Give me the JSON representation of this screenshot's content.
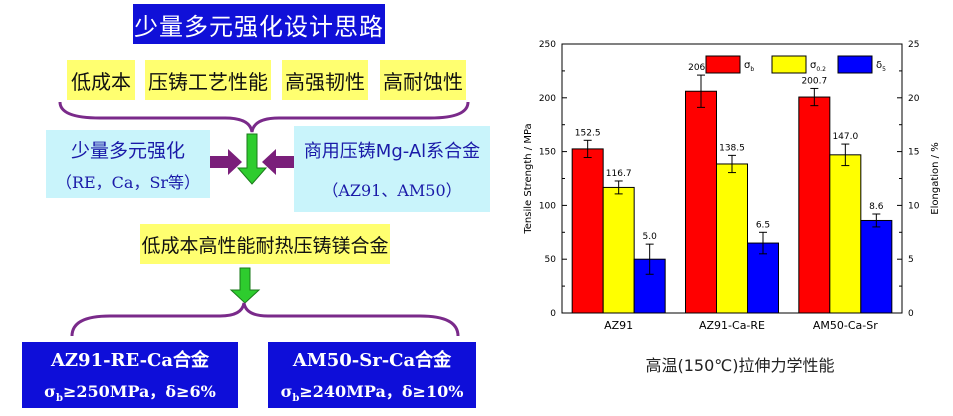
{
  "left": {
    "title": "少量多元强化设计思路",
    "tags": [
      "低成本",
      "压铸工艺性能",
      "高强韧性",
      "高耐蚀性"
    ],
    "box_left": {
      "line1": "少量多元强化",
      "line2": "（RE，Ca，Sr等）"
    },
    "box_right": {
      "line1": "商用压铸Mg-Al系合金",
      "line2": "（AZ91、AM50）"
    },
    "middle": "低成本高性能耐热压铸镁合金",
    "result_left": {
      "line1": "AZ91-RE-Ca合金",
      "sigma": "σ",
      "sub": "b",
      "cond": "≥250MPa，δ≥6%"
    },
    "result_right": {
      "line1": "AM50-Sr-Ca合金",
      "sigma": "σ",
      "sub": "b",
      "cond": "≥240MPa，δ≥10%"
    },
    "colors": {
      "title_bg": "#1010d8",
      "tag_bg": "#ffff70",
      "cyan_bg": "#c9f4fb",
      "result_bg": "#0e0ed9",
      "arrow_green": "#2ecc2e",
      "arrow_purple": "#7a1f7a",
      "brace": "#7a2a8a"
    }
  },
  "chart_data": {
    "type": "bar",
    "categories": [
      "AZ91",
      "AZ91-Ca-RE",
      "AM50-Ca-Sr"
    ],
    "ylabel_left": "Tensile Strength / MPa",
    "ylabel_right": "Elongation / %",
    "ylim_left": [
      0,
      250
    ],
    "ylim_right": [
      0,
      25
    ],
    "yticks_left": [
      0,
      50,
      100,
      150,
      200,
      250
    ],
    "yticks_right": [
      0,
      5,
      10,
      15,
      20,
      25
    ],
    "caption": "高温(150℃)拉伸力学性能",
    "legend_position": "top-right",
    "series": [
      {
        "name": "σ",
        "sub": "b",
        "axis": "left",
        "color": "#ff0000",
        "values": [
          152.5,
          206.1,
          200.7
        ],
        "errors": [
          8,
          15,
          8
        ],
        "labels": [
          "152.5",
          "206.1",
          "200.7"
        ]
      },
      {
        "name": "σ",
        "sub": "0.2",
        "axis": "left",
        "color": "#ffff00",
        "values": [
          116.7,
          138.5,
          147.0
        ],
        "errors": [
          6,
          8,
          10
        ],
        "labels": [
          "116.7",
          "138.5",
          "147.0"
        ]
      },
      {
        "name": "δ",
        "sub": "5",
        "axis": "right",
        "color": "#0000ff",
        "values": [
          5.0,
          6.5,
          8.6
        ],
        "errors": [
          1.4,
          1.0,
          0.6
        ],
        "labels": [
          "5.0",
          "6.5",
          "8.6"
        ]
      }
    ]
  }
}
